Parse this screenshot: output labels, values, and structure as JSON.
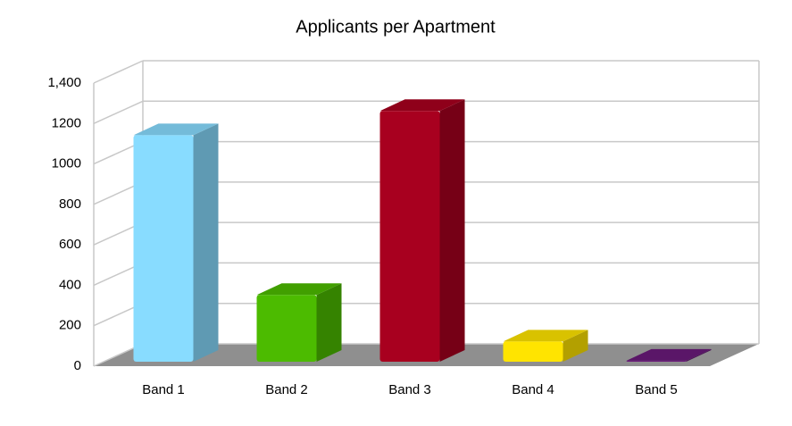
{
  "chart_data": {
    "type": "bar3d",
    "title": "Applicants per Apartment",
    "categories": [
      "Band 1",
      "Band 2",
      "Band 3",
      "Band 4",
      "Band 5"
    ],
    "values": [
      1120,
      330,
      1240,
      100,
      5
    ],
    "colors": [
      "#88dcff",
      "#4cbb00",
      "#a8001f",
      "#ffe400",
      "#6a1a7a"
    ],
    "ylim": [
      0,
      1400
    ],
    "yticks": [
      0,
      200,
      400,
      600,
      800,
      1000,
      1200,
      {
        "value": 1400,
        "label": "1,400"
      }
    ],
    "grid": true
  }
}
